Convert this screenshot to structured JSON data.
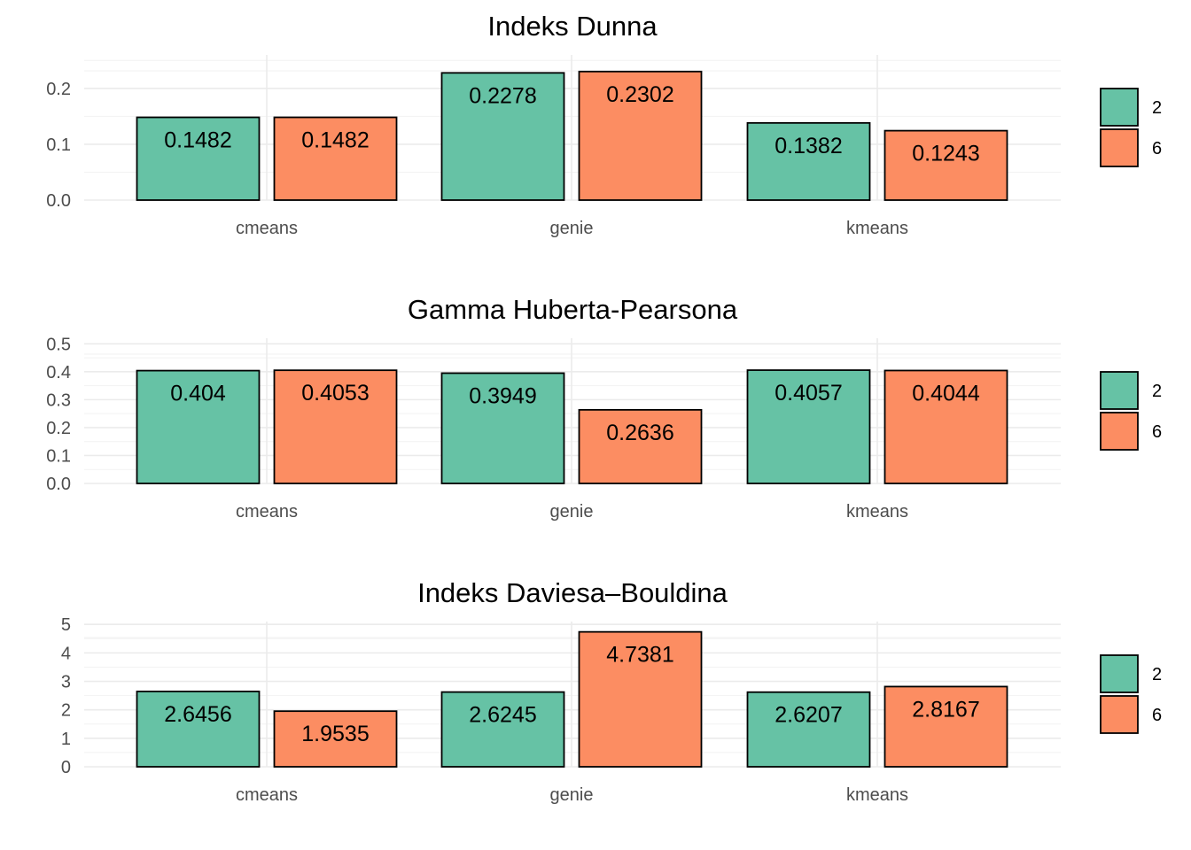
{
  "chart_data": [
    {
      "type": "bar",
      "title": "Indeks Dunna",
      "categories": [
        "cmeans",
        "genie",
        "kmeans"
      ],
      "series": [
        {
          "name": "2",
          "values": [
            0.1482,
            0.2278,
            0.1382
          ],
          "labels": [
            "0.1482",
            "0.2278",
            "0.1382"
          ],
          "color": "#66C2A5"
        },
        {
          "name": "6",
          "values": [
            0.1482,
            0.2302,
            0.1243
          ],
          "labels": [
            "0.1482",
            "0.2302",
            "0.1243"
          ],
          "color": "#FC8D62"
        }
      ],
      "ylim": [
        0,
        0.26
      ],
      "yticks": [
        0,
        0.1,
        0.2
      ],
      "ytick_labels": [
        "0.0",
        "0.1",
        "0.2"
      ],
      "grid": true,
      "legend": "right"
    },
    {
      "type": "bar",
      "title": "Gamma Huberta-Pearsona",
      "categories": [
        "cmeans",
        "genie",
        "kmeans"
      ],
      "series": [
        {
          "name": "2",
          "values": [
            0.404,
            0.3949,
            0.4057
          ],
          "labels": [
            "0.404",
            "0.3949",
            "0.4057"
          ],
          "color": "#66C2A5"
        },
        {
          "name": "6",
          "values": [
            0.4053,
            0.2636,
            0.4044
          ],
          "labels": [
            "0.4053",
            "0.2636",
            "0.4044"
          ],
          "color": "#FC8D62"
        }
      ],
      "ylim": [
        0,
        0.52
      ],
      "yticks": [
        0,
        0.1,
        0.2,
        0.3,
        0.4,
        0.5
      ],
      "ytick_labels": [
        "0.0",
        "0.1",
        "0.2",
        "0.3",
        "0.4",
        "0.5"
      ],
      "grid": true,
      "legend": "right"
    },
    {
      "type": "bar",
      "title": "Indeks Daviesa–Bouldina",
      "categories": [
        "cmeans",
        "genie",
        "kmeans"
      ],
      "series": [
        {
          "name": "2",
          "values": [
            2.6456,
            2.6245,
            2.6207
          ],
          "labels": [
            "2.6456",
            "2.6245",
            "2.6207"
          ],
          "color": "#66C2A5"
        },
        {
          "name": "6",
          "values": [
            1.9535,
            4.7381,
            2.8167
          ],
          "labels": [
            "1.9535",
            "4.7381",
            "2.8167"
          ],
          "color": "#FC8D62"
        }
      ],
      "ylim": [
        0,
        5.1
      ],
      "yticks": [
        0,
        1,
        2,
        3,
        4,
        5
      ],
      "ytick_labels": [
        "0",
        "1",
        "2",
        "3",
        "4",
        "5"
      ],
      "grid": true,
      "legend": "right"
    }
  ]
}
